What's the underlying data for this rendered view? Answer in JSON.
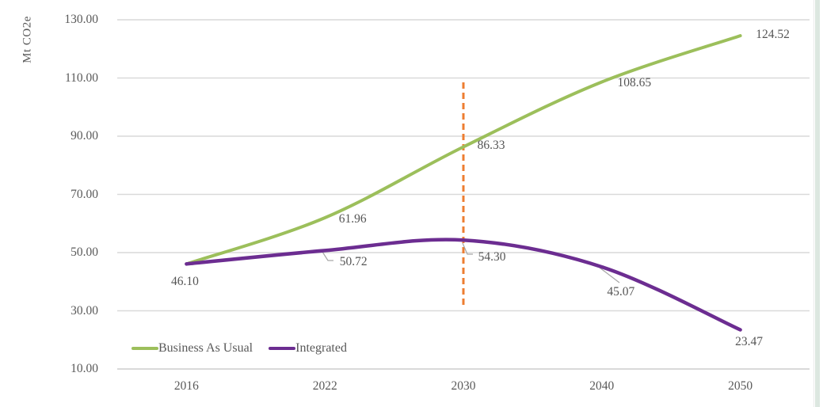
{
  "app": {
    "background_color": "#ffffff",
    "edge_stripe_color": "#dce7e0"
  },
  "chart_data": {
    "type": "line",
    "title": "",
    "xlabel": "",
    "ylabel": "Mt CO2e",
    "categories": [
      "2016",
      "2022",
      "2030",
      "2040",
      "2050"
    ],
    "yticks": [
      "130.00",
      "110.00",
      "90.00",
      "70.00",
      "50.00",
      "30.00",
      "10.00"
    ],
    "ylim": [
      10,
      130
    ],
    "grid": "horizontal",
    "grid_color": "#D9D9D9",
    "text_color": "#595959",
    "legend_position": "bottom-left",
    "series": [
      {
        "name": "Business As Usual",
        "color": "#9CBF5B",
        "values": [
          46.1,
          61.96,
          86.33,
          108.65,
          124.52
        ],
        "labels": [
          "46.10",
          "61.96",
          "86.33",
          "108.65",
          "124.52"
        ]
      },
      {
        "name": "Integrated",
        "color": "#6C2D91",
        "values": [
          46.1,
          50.72,
          54.3,
          45.07,
          23.47
        ],
        "labels": [
          null,
          "50.72",
          "54.30",
          "45.07",
          "23.47"
        ]
      }
    ],
    "annotations": [
      {
        "type": "vline",
        "x": "2030",
        "color": "#ED7D31",
        "style": "dashed"
      }
    ]
  }
}
